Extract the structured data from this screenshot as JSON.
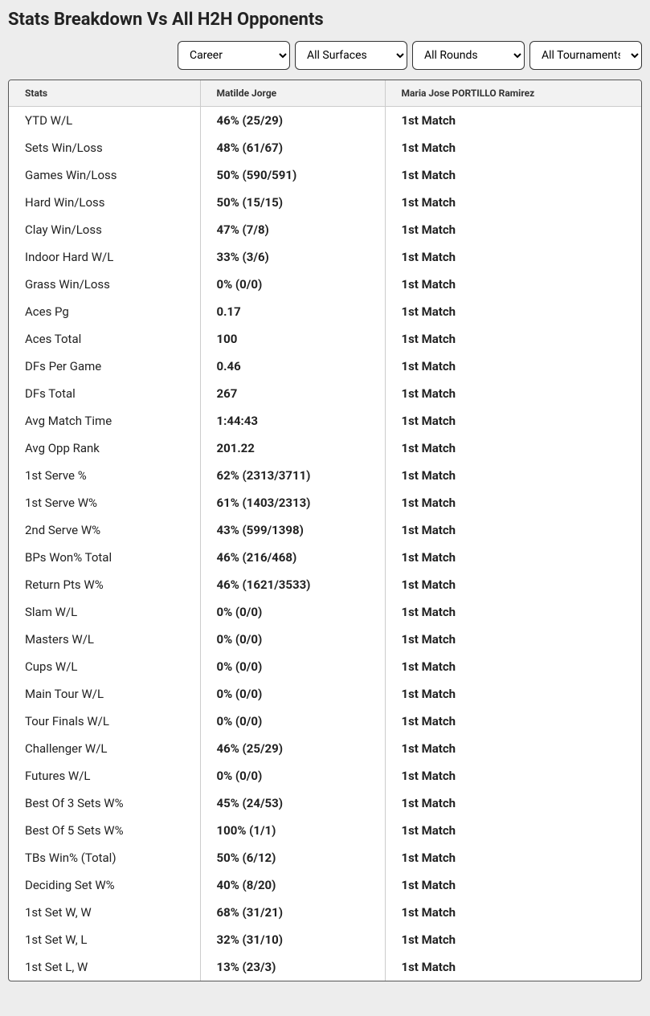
{
  "title": "Stats Breakdown Vs All H2H Opponents",
  "filters": {
    "career": "Career",
    "surfaces": "All Surfaces",
    "rounds": "All Rounds",
    "tournaments": "All Tournaments"
  },
  "table": {
    "headers": {
      "stats": "Stats",
      "player1": "Matilde Jorge",
      "player2": "Maria Jose PORTILLO Ramirez"
    },
    "rows": [
      {
        "stat": "YTD W/L",
        "p1": "46% (25/29)",
        "p2": "1st Match"
      },
      {
        "stat": "Sets Win/Loss",
        "p1": "48% (61/67)",
        "p2": "1st Match"
      },
      {
        "stat": "Games Win/Loss",
        "p1": "50% (590/591)",
        "p2": "1st Match"
      },
      {
        "stat": "Hard Win/Loss",
        "p1": "50% (15/15)",
        "p2": "1st Match"
      },
      {
        "stat": "Clay Win/Loss",
        "p1": "47% (7/8)",
        "p2": "1st Match"
      },
      {
        "stat": "Indoor Hard W/L",
        "p1": "33% (3/6)",
        "p2": "1st Match"
      },
      {
        "stat": "Grass Win/Loss",
        "p1": "0% (0/0)",
        "p2": "1st Match"
      },
      {
        "stat": "Aces Pg",
        "p1": "0.17",
        "p2": "1st Match"
      },
      {
        "stat": "Aces Total",
        "p1": "100",
        "p2": "1st Match"
      },
      {
        "stat": "DFs Per Game",
        "p1": "0.46",
        "p2": "1st Match"
      },
      {
        "stat": "DFs Total",
        "p1": "267",
        "p2": "1st Match"
      },
      {
        "stat": "Avg Match Time",
        "p1": "1:44:43",
        "p2": "1st Match"
      },
      {
        "stat": "Avg Opp Rank",
        "p1": "201.22",
        "p2": "1st Match"
      },
      {
        "stat": "1st Serve %",
        "p1": "62% (2313/3711)",
        "p2": "1st Match"
      },
      {
        "stat": "1st Serve W%",
        "p1": "61% (1403/2313)",
        "p2": "1st Match"
      },
      {
        "stat": "2nd Serve W%",
        "p1": "43% (599/1398)",
        "p2": "1st Match"
      },
      {
        "stat": "BPs Won% Total",
        "p1": "46% (216/468)",
        "p2": "1st Match"
      },
      {
        "stat": "Return Pts W%",
        "p1": "46% (1621/3533)",
        "p2": "1st Match"
      },
      {
        "stat": "Slam W/L",
        "p1": "0% (0/0)",
        "p2": "1st Match"
      },
      {
        "stat": "Masters W/L",
        "p1": "0% (0/0)",
        "p2": "1st Match"
      },
      {
        "stat": "Cups W/L",
        "p1": "0% (0/0)",
        "p2": "1st Match"
      },
      {
        "stat": "Main Tour W/L",
        "p1": "0% (0/0)",
        "p2": "1st Match"
      },
      {
        "stat": "Tour Finals W/L",
        "p1": "0% (0/0)",
        "p2": "1st Match"
      },
      {
        "stat": "Challenger W/L",
        "p1": "46% (25/29)",
        "p2": "1st Match"
      },
      {
        "stat": "Futures W/L",
        "p1": "0% (0/0)",
        "p2": "1st Match"
      },
      {
        "stat": "Best Of 3 Sets W%",
        "p1": "45% (24/53)",
        "p2": "1st Match"
      },
      {
        "stat": "Best Of 5 Sets W%",
        "p1": "100% (1/1)",
        "p2": "1st Match"
      },
      {
        "stat": "TBs Win% (Total)",
        "p1": "50% (6/12)",
        "p2": "1st Match"
      },
      {
        "stat": "Deciding Set W%",
        "p1": "40% (8/20)",
        "p2": "1st Match"
      },
      {
        "stat": "1st Set W, W",
        "p1": "68% (31/21)",
        "p2": "1st Match"
      },
      {
        "stat": "1st Set W, L",
        "p1": "32% (31/10)",
        "p2": "1st Match"
      },
      {
        "stat": "1st Set L, W",
        "p1": "13% (23/3)",
        "p2": "1st Match"
      }
    ]
  }
}
